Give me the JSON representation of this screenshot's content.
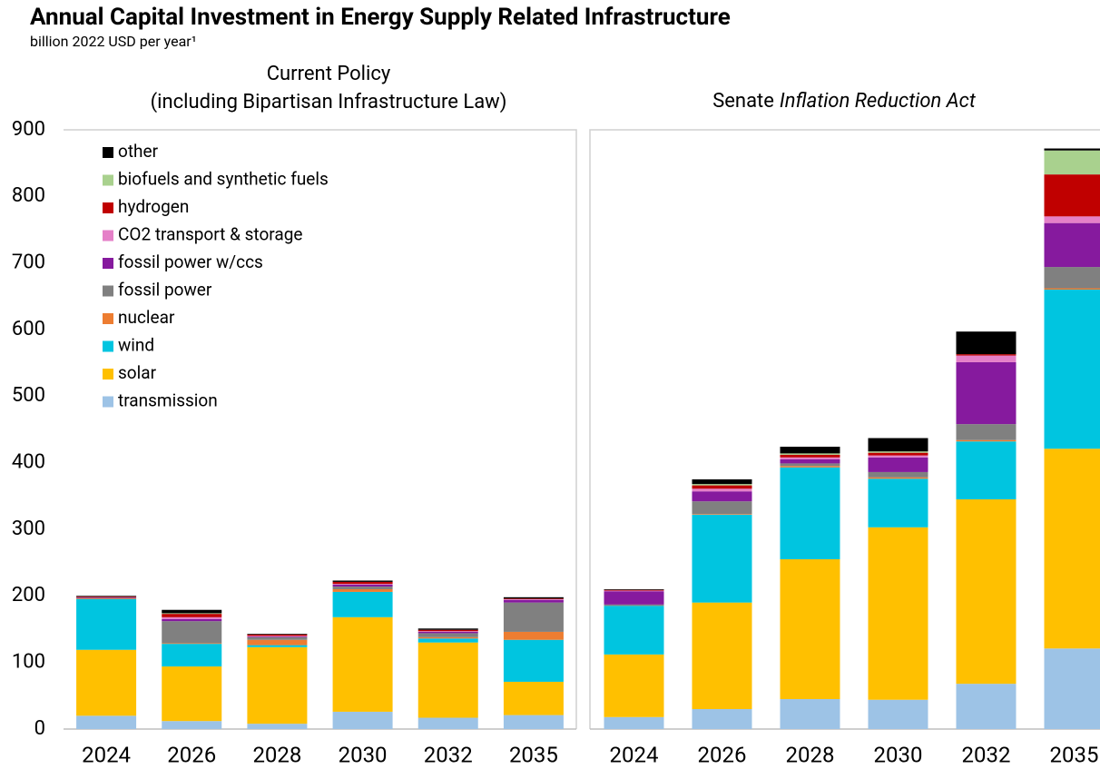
{
  "title": "Annual Capital Investment in Energy Supply Related Infrastructure",
  "subtitle": "billion 2022 USD per year¹",
  "chart_data": [
    {
      "type": "bar",
      "stacked": true,
      "title": [
        "Current Policy",
        "(including Bipartisan Infrastructure Law)"
      ],
      "categories": [
        "2024",
        "2026",
        "2028",
        "2030",
        "2032",
        "2035"
      ],
      "ylim": [
        0,
        900
      ],
      "yticks": [
        0,
        100,
        200,
        300,
        400,
        500,
        600,
        700,
        800,
        900
      ],
      "legend": "upper left",
      "series": [
        {
          "name": "transmission",
          "color": "#9dc3e6",
          "values": [
            20,
            12,
            8,
            26,
            17,
            21
          ]
        },
        {
          "name": "solar",
          "color": "#ffc000",
          "values": [
            99,
            82,
            115,
            142,
            113,
            50
          ]
        },
        {
          "name": "wind",
          "color": "#00c5e0",
          "values": [
            76,
            34,
            3,
            38,
            6,
            63
          ]
        },
        {
          "name": "nuclear",
          "color": "#ed7d31",
          "values": [
            1,
            1,
            8,
            4,
            2,
            12
          ]
        },
        {
          "name": "fossil power",
          "color": "#808080",
          "values": [
            1,
            33,
            4,
            4,
            6,
            44
          ]
        },
        {
          "name": "fossil power w/ccs",
          "color": "#861a9e",
          "values": [
            1,
            3,
            1,
            3,
            2,
            4
          ]
        },
        {
          "name": "CO2 transport & storage",
          "color": "#e580c8",
          "values": [
            0,
            3,
            1,
            1,
            1,
            1
          ]
        },
        {
          "name": "hydrogen",
          "color": "#c00000",
          "values": [
            1,
            5,
            2,
            3,
            2,
            1
          ]
        },
        {
          "name": "biofuels and synthetic fuels",
          "color": "#a9d18e",
          "values": [
            0,
            1,
            0,
            0,
            0,
            0
          ]
        },
        {
          "name": "other",
          "color": "#000000",
          "values": [
            1,
            5,
            1,
            2,
            2,
            2
          ]
        }
      ]
    },
    {
      "type": "bar",
      "stacked": true,
      "title": [
        "Senate",
        "Inflation Reduction Act"
      ],
      "categories": [
        "2024",
        "2026",
        "2028",
        "2030",
        "2032",
        "2035"
      ],
      "series": [
        {
          "values": [
            18,
            30,
            45,
            44,
            68,
            121
          ]
        },
        {
          "values": [
            94,
            160,
            210,
            259,
            277,
            300
          ]
        },
        {
          "values": [
            73,
            132,
            138,
            73,
            87,
            239
          ]
        },
        {
          "values": [
            0,
            1,
            2,
            2,
            2,
            2
          ]
        },
        {
          "values": [
            2,
            19,
            4,
            8,
            24,
            32
          ]
        },
        {
          "values": [
            20,
            15,
            6,
            22,
            93,
            66
          ]
        },
        {
          "values": [
            1,
            4,
            3,
            3,
            10,
            10
          ]
        },
        {
          "values": [
            1,
            5,
            4,
            4,
            2,
            63
          ]
        },
        {
          "values": [
            0,
            2,
            2,
            2,
            0,
            36
          ]
        },
        {
          "values": [
            1,
            7,
            10,
            20,
            34,
            3
          ]
        }
      ]
    }
  ]
}
